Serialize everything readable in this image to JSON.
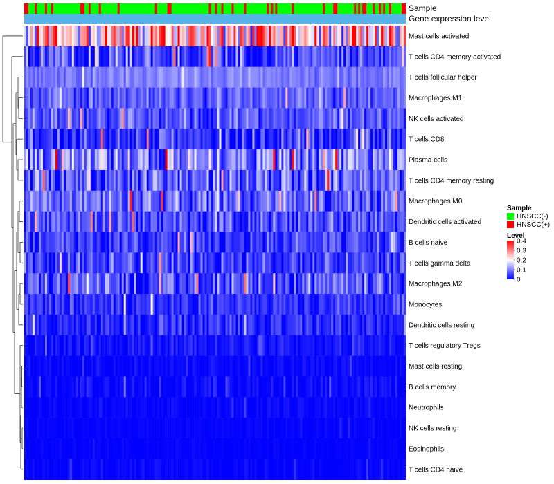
{
  "chart_data": {
    "type": "heatmap",
    "annotation_tracks": [
      "Sample",
      "Gene expression level"
    ],
    "rows": [
      {
        "name": "Mast cells activated",
        "mean": 0.24,
        "spread": 0.17
      },
      {
        "name": "T cells CD4 memory activated",
        "mean": 0.06,
        "spread": 0.08
      },
      {
        "name": "T cells follicular helper",
        "mean": 0.1,
        "spread": 0.03
      },
      {
        "name": "Macrophages M1",
        "mean": 0.07,
        "spread": 0.05
      },
      {
        "name": "NK cells activated",
        "mean": 0.07,
        "spread": 0.05
      },
      {
        "name": "T cells CD8",
        "mean": 0.04,
        "spread": 0.07
      },
      {
        "name": "Plasma cells",
        "mean": 0.1,
        "spread": 0.09
      },
      {
        "name": "T cells CD4 memory resting",
        "mean": 0.07,
        "spread": 0.08
      },
      {
        "name": "Macrophages M0",
        "mean": 0.08,
        "spread": 0.07
      },
      {
        "name": "Dendritic cells activated",
        "mean": 0.06,
        "spread": 0.06
      },
      {
        "name": "B cells naive",
        "mean": 0.05,
        "spread": 0.05
      },
      {
        "name": "T cells gamma delta",
        "mean": 0.05,
        "spread": 0.06
      },
      {
        "name": "Macrophages M2",
        "mean": 0.06,
        "spread": 0.07
      },
      {
        "name": "Monocytes",
        "mean": 0.04,
        "spread": 0.04
      },
      {
        "name": "Dendritic cells resting",
        "mean": 0.03,
        "spread": 0.04
      },
      {
        "name": "T cells regulatory  Tregs",
        "mean": 0.015,
        "spread": 0.025
      },
      {
        "name": "Mast cells resting",
        "mean": 0.004,
        "spread": 0.012
      },
      {
        "name": "B cells memory",
        "mean": 0.006,
        "spread": 0.02
      },
      {
        "name": "Neutrophils",
        "mean": 0.004,
        "spread": 0.012
      },
      {
        "name": "NK cells resting",
        "mean": 0.003,
        "spread": 0.006
      },
      {
        "name": "Eosinophils",
        "mean": 0.002,
        "spread": 0.005
      },
      {
        "name": "T cells CD4 naive",
        "mean": 0.003,
        "spread": 0.01
      }
    ],
    "n_samples": 184,
    "sample_groups": [
      "HNSCC(-)",
      "HNSCC(+)"
    ],
    "positive_fraction": 0.2,
    "color_scale": {
      "min": 0,
      "max": 0.4,
      "ticks": [
        "0",
        "0.1",
        "0.2",
        "0.3",
        "0.4"
      ],
      "stops": [
        "#0000ff",
        "#ffffff",
        "#ff0000"
      ]
    },
    "colors": {
      "HNSCC(-)": "#00ff00",
      "HNSCC(+)": "#ff0000",
      "gene_expression_track": "#56b4e9",
      "dendrogram": "#333333"
    },
    "legend": {
      "sample_title": "Sample",
      "level_title": "Level",
      "position": "right"
    }
  }
}
